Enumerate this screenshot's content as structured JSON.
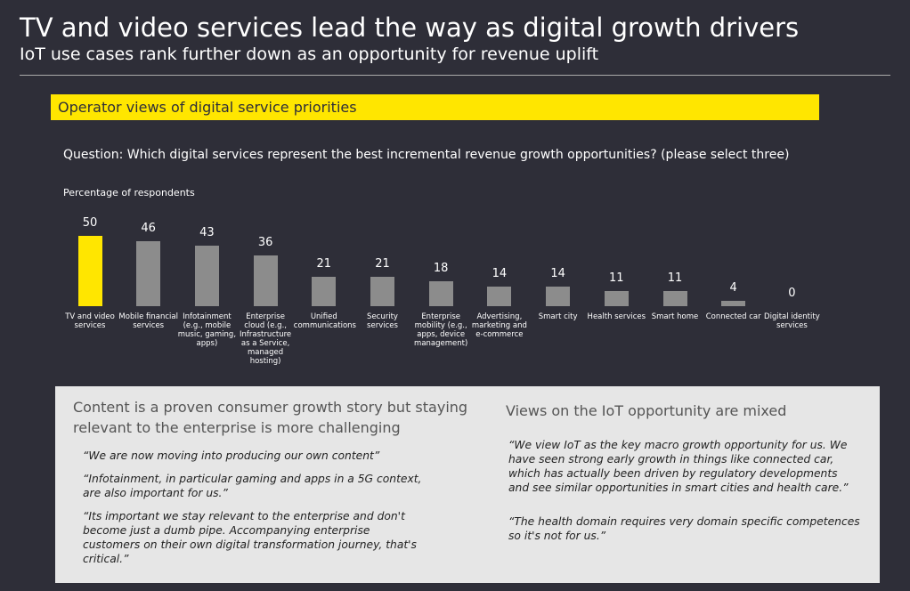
{
  "header": {
    "title": "TV and video services lead the way as digital growth drivers",
    "subtitle": "IoT use cases rank further down as an opportunity for revenue uplift"
  },
  "banner": "Operator views of digital service priorities",
  "question": "Question: Which digital services represent the best incremental revenue growth opportunities? (please select three)",
  "chart_data": {
    "type": "bar",
    "y_label": "Percentage of respondents",
    "categories": [
      "TV and video services",
      "Mobile financial services",
      "Infotainment (e.g., mobile music, gaming, apps)",
      "Enterprise cloud (e.g., Infrastructure as a Service, managed hosting)",
      "Unified communications",
      "Security services",
      "Enterprise mobility (e.g., apps, device management)",
      "Advertising, marketing and e-commerce",
      "Smart city",
      "Health services",
      "Smart home",
      "Connected car",
      "Digital identity services"
    ],
    "values": [
      50,
      46,
      43,
      36,
      21,
      21,
      18,
      14,
      14,
      11,
      11,
      4,
      0
    ],
    "colors": [
      "#ffe600",
      "#8c8c8c",
      "#8c8c8c",
      "#8c8c8c",
      "#8c8c8c",
      "#8c8c8c",
      "#8c8c8c",
      "#8c8c8c",
      "#8c8c8c",
      "#8c8c8c",
      "#8c8c8c",
      "#8c8c8c",
      "#8c8c8c"
    ],
    "ylim": [
      0,
      50
    ]
  },
  "panel": {
    "left": {
      "heading": "Content is a proven consumer growth story but staying relevant to the enterprise is more challenging",
      "quotes": [
        "“We are now moving into producing our own content”",
        "“Infotainment, in particular gaming and apps in a 5G context, are also important for us.”",
        "“Its important we stay relevant to the enterprise and don't become just a dumb pipe. Accompanying enterprise customers on their own digital transformation journey, that's critical.”"
      ]
    },
    "right": {
      "heading": "Views on the IoT opportunity are mixed",
      "quotes": [
        "“We view IoT as the key macro growth opportunity for us. We have seen strong early growth in things like connected car, which has actually been driven by regulatory developments and see similar opportunities in smart cities and health care.”",
        "“The health domain requires very domain specific competences so it's not for us.”"
      ]
    }
  }
}
